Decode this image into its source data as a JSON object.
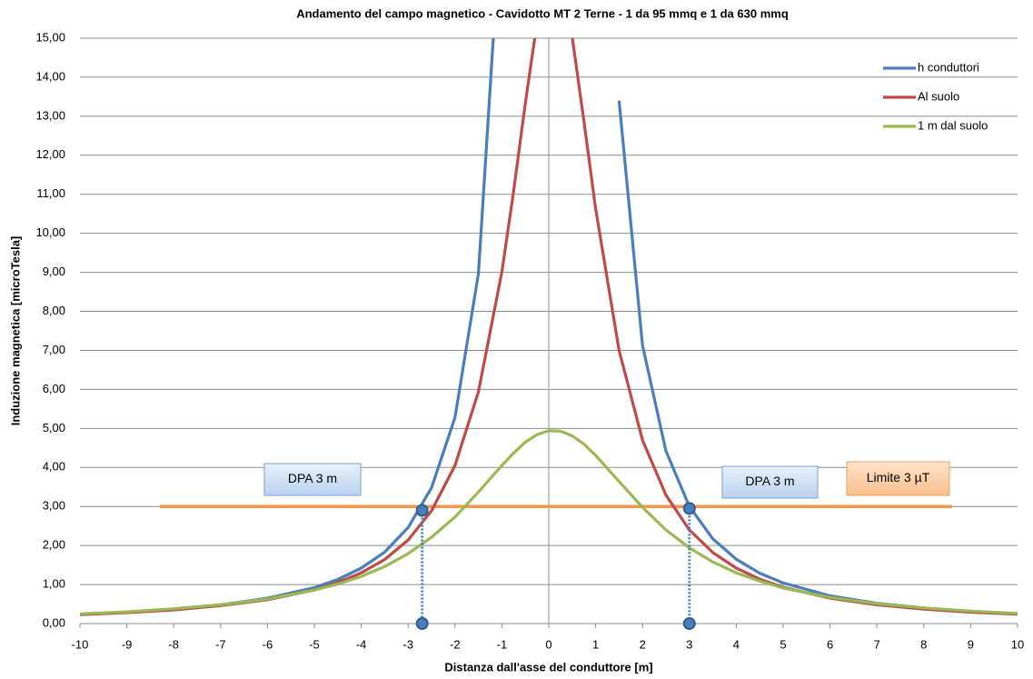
{
  "chart_data": {
    "type": "line",
    "title": "Andamento del campo magnetico  - Cavidotto MT 2 Terne -  1 da 95 mmq  e  1  da  630  mmq",
    "x_label": "Distanza dall'asse del conduttore [m]",
    "y_label": "Induzione magnetica [microTesla]",
    "x": [
      -10,
      -9,
      -8,
      -7,
      -6,
      -5,
      -4.5,
      -4,
      -3.5,
      -3,
      -2.5,
      -2,
      -1.5,
      -1,
      -0.75,
      -0.5,
      -0.25,
      0,
      0.25,
      0.5,
      0.75,
      1,
      1.5,
      2,
      2.5,
      3,
      3.5,
      4,
      4.5,
      5,
      6,
      7,
      8,
      9,
      10
    ],
    "series": [
      {
        "name": "h conduttori",
        "color": "#4a7ebb",
        "values": [
          0.24,
          0.29,
          0.37,
          0.48,
          0.65,
          0.92,
          1.13,
          1.42,
          1.83,
          2.46,
          3.48,
          5.28,
          8.97,
          18.48,
          null,
          null,
          null,
          null,
          null,
          null,
          null,
          null,
          13.4,
          7.13,
          4.42,
          3.0,
          2.17,
          1.65,
          1.29,
          1.04,
          0.71,
          0.52,
          0.4,
          0.31,
          0.25
        ]
      },
      {
        "name": "Al suolo",
        "color": "#be4b48",
        "values": [
          0.23,
          0.28,
          0.35,
          0.46,
          0.61,
          0.86,
          1.05,
          1.3,
          1.64,
          2.14,
          2.89,
          4.05,
          5.94,
          9.01,
          11.07,
          13.33,
          15.4,
          16.62,
          16.48,
          15.03,
          12.88,
          10.63,
          7.0,
          4.7,
          3.29,
          2.4,
          1.82,
          1.42,
          1.14,
          0.93,
          0.65,
          0.48,
          0.37,
          0.29,
          0.24
        ]
      },
      {
        "name": "1 m dal suolo",
        "color": "#98b954",
        "values": [
          0.25,
          0.3,
          0.38,
          0.48,
          0.63,
          0.86,
          1.01,
          1.21,
          1.46,
          1.79,
          2.21,
          2.73,
          3.37,
          4.05,
          4.37,
          4.65,
          4.84,
          4.94,
          4.93,
          4.81,
          4.6,
          4.31,
          3.64,
          2.98,
          2.4,
          1.94,
          1.58,
          1.3,
          1.09,
          0.91,
          0.67,
          0.51,
          0.4,
          0.32,
          0.26
        ]
      }
    ],
    "limit": {
      "value": 3,
      "x": [
        -8.3,
        8.6
      ],
      "label": "Limite 3 µT",
      "color": "#f79646"
    },
    "dpa_points": [
      {
        "x": -2.7,
        "y": 2.9
      },
      {
        "x": 3,
        "y": 2.95
      }
    ],
    "annotations": [
      "DPA  3 m",
      "DPA  3 m"
    ],
    "xlim": [
      -10,
      10
    ],
    "xticks": [
      -10,
      -9,
      -8,
      -7,
      -6,
      -5,
      -4,
      -3,
      -2,
      -1,
      0,
      1,
      2,
      3,
      4,
      5,
      6,
      7,
      8,
      9,
      10
    ],
    "ylim": [
      0,
      15
    ],
    "yticks": [
      {
        "value": 0,
        "label": "0,00"
      },
      {
        "value": 1,
        "label": "1,00"
      },
      {
        "value": 2,
        "label": "2,00"
      },
      {
        "value": 3,
        "label": "3,00"
      },
      {
        "value": 4,
        "label": "4,00"
      },
      {
        "value": 5,
        "label": "5,00"
      },
      {
        "value": 6,
        "label": "6,00"
      },
      {
        "value": 7,
        "label": "7,00"
      },
      {
        "value": 8,
        "label": "8,00"
      },
      {
        "value": 9,
        "label": "9,00"
      },
      {
        "value": 10,
        "label": "10,00"
      },
      {
        "value": 11,
        "label": "11,00"
      },
      {
        "value": 12,
        "label": "12,00"
      },
      {
        "value": 13,
        "label": "13,00"
      },
      {
        "value": 14,
        "label": "14,00"
      },
      {
        "value": 15,
        "label": "15,00"
      }
    ],
    "grid": true,
    "legend": "top-right"
  }
}
